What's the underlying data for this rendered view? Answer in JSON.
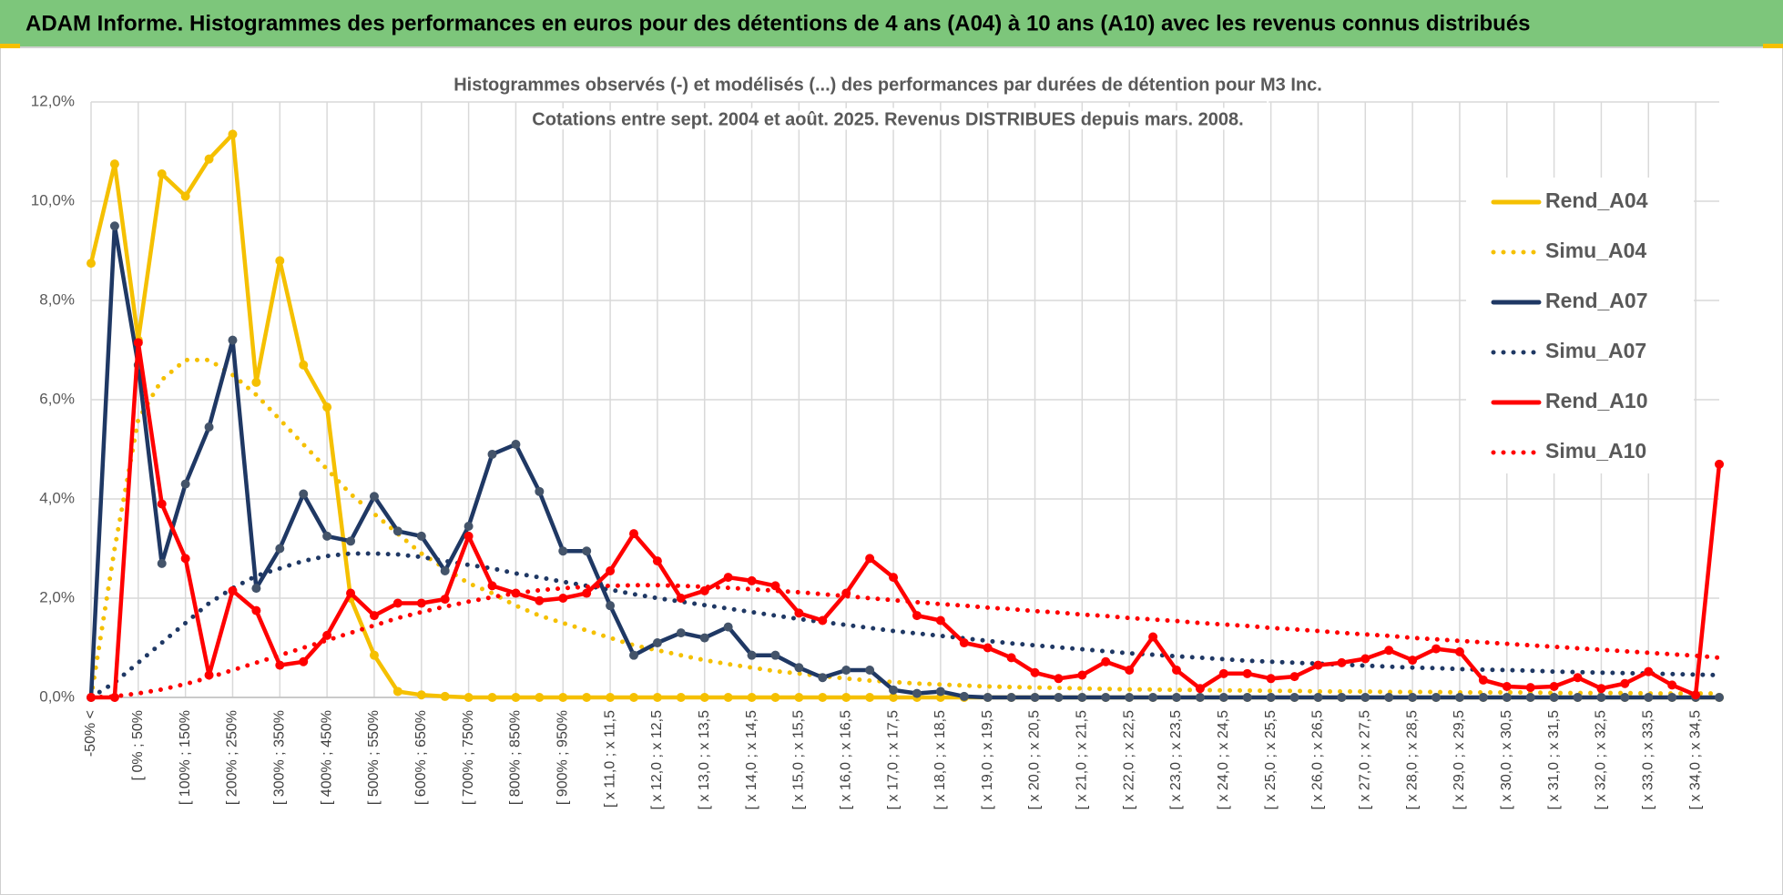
{
  "page_title": "ADAM Informe. Histogrammes des performances en euros pour des détentions de 4 ans (A04) à 10 ans (A10) avec les revenus connus distribués",
  "chart_data": {
    "type": "line",
    "title": "Histogrammes observés (-) et modélisés (...) des performances par durées de détention pour M3 Inc.",
    "subtitle": "Cotations entre sept. 2004 et août. 2025. Revenus DISTRIBUES depuis mars. 2008.",
    "categories": [
      "-50% <",
      null,
      "[ 0% ; 50%",
      null,
      "[ 100% ; 150%",
      null,
      "[ 200% ; 250%",
      null,
      "[ 300% ; 350%",
      null,
      "[ 400% ; 450%",
      null,
      "[ 500% ; 550%",
      null,
      "[ 600% ; 650%",
      null,
      "[ 700% ; 750%",
      null,
      "[ 800% ; 850%",
      null,
      "[ 900% ; 950%",
      null,
      "[ x 11,0 ; x 11,5",
      null,
      "[ x 12,0 ; x 12,5",
      null,
      "[ x 13,0 ; x 13,5",
      null,
      "[ x 14,0 ; x 14,5",
      null,
      "[ x 15,0 ; x 15,5",
      null,
      "[ x 16,0 ; x 16,5",
      null,
      "[ x 17,0 ; x 17,5",
      null,
      "[ x 18,0 ; x 18,5",
      null,
      "[ x 19,0 ; x 19,5",
      null,
      "[ x 20,0 ; x 20,5",
      null,
      "[ x 21,0 ; x 21,5",
      null,
      "[ x 22,0 ; x 22,5",
      null,
      "[ x 23,0 ; x 23,5",
      null,
      "[ x 24,0 ; x 24,5",
      null,
      "[ x 25,0 ; x 25,5",
      null,
      "[ x 26,0 ; x 26,5",
      null,
      "[ x 27,0 ; x 27,5",
      null,
      "[ x 28,0 ; x 28,5",
      null,
      "[ x 29,0 ; x 29,5",
      null,
      "[ x 30,0 ; x 30,5",
      null,
      "[ x 31,0 ; x 31,5",
      null,
      "[ x 32,0 ; x 32,5",
      null,
      "[ x 33,0 ; x 33,5",
      null,
      "[ x 34,0 ; x 34,5",
      null
    ],
    "series": [
      {
        "name": "Rend_A04",
        "color": "#f5c000",
        "line_style": "solid",
        "values": [
          8.75,
          10.75,
          7.2,
          10.55,
          10.1,
          10.85,
          11.35,
          6.35,
          8.8,
          6.7,
          5.85,
          2.0,
          0.85,
          0.12,
          0.05,
          0.02,
          0,
          0,
          0,
          0,
          0,
          0,
          0,
          0,
          0,
          0,
          0,
          0,
          0,
          0,
          0,
          0,
          0,
          0,
          0,
          0,
          0,
          0,
          0,
          0,
          0,
          0,
          0,
          0,
          0,
          0,
          0,
          0,
          0,
          0,
          0,
          0,
          0,
          0,
          0,
          0,
          0,
          0,
          0,
          0,
          0,
          0,
          0,
          0,
          0,
          0,
          0,
          0,
          0,
          0
        ]
      },
      {
        "name": "Simu_A04",
        "color": "#f5c000",
        "line_style": "dotted",
        "values": [
          0,
          3.0,
          5.6,
          6.4,
          6.8,
          6.8,
          6.5,
          6.1,
          5.6,
          5.1,
          4.6,
          4.1,
          3.7,
          3.3,
          2.9,
          2.6,
          2.3,
          2.1,
          1.85,
          1.65,
          1.5,
          1.35,
          1.2,
          1.05,
          0.95,
          0.85,
          0.75,
          0.67,
          0.6,
          0.53,
          0.48,
          0.43,
          0.38,
          0.34,
          0.31,
          0.28,
          0.26,
          0.24,
          0.22,
          0.21,
          0.2,
          0.19,
          0.18,
          0.17,
          0.16,
          0.16,
          0.15,
          0.15,
          0.14,
          0.14,
          0.13,
          0.13,
          0.12,
          0.12,
          0.12,
          0.11,
          0.11,
          0.11,
          0.1,
          0.1,
          0.1,
          0.1,
          0.09,
          0.09,
          0.09,
          0.09,
          0.08,
          0.08,
          0.08,
          0.08
        ]
      },
      {
        "name": "Rend_A07",
        "color": "#1f3864",
        "line_style": "solid",
        "values": [
          0,
          9.5,
          6.7,
          2.7,
          4.3,
          5.45,
          7.2,
          2.2,
          3.0,
          4.1,
          3.25,
          3.15,
          4.05,
          3.35,
          3.25,
          2.55,
          3.45,
          4.9,
          5.1,
          4.15,
          2.95,
          2.95,
          1.85,
          0.85,
          1.1,
          1.3,
          1.2,
          1.42,
          0.85,
          0.85,
          0.6,
          0.4,
          0.55,
          0.55,
          0.15,
          0.08,
          0.12,
          0.02,
          0,
          0,
          0,
          0,
          0,
          0,
          0,
          0,
          0,
          0,
          0,
          0,
          0,
          0,
          0,
          0,
          0,
          0,
          0,
          0,
          0,
          0,
          0,
          0,
          0,
          0,
          0,
          0,
          0,
          0,
          0,
          0
        ]
      },
      {
        "name": "Simu_A07",
        "color": "#1f3864",
        "line_style": "dotted",
        "values": [
          0,
          0.3,
          0.7,
          1.1,
          1.5,
          1.9,
          2.2,
          2.45,
          2.6,
          2.75,
          2.85,
          2.9,
          2.9,
          2.88,
          2.83,
          2.75,
          2.67,
          2.6,
          2.5,
          2.42,
          2.33,
          2.25,
          2.17,
          2.08,
          2.0,
          1.93,
          1.86,
          1.79,
          1.72,
          1.65,
          1.58,
          1.52,
          1.46,
          1.4,
          1.34,
          1.29,
          1.24,
          1.19,
          1.14,
          1.09,
          1.05,
          1.01,
          0.97,
          0.93,
          0.89,
          0.86,
          0.83,
          0.8,
          0.77,
          0.74,
          0.72,
          0.7,
          0.68,
          0.66,
          0.64,
          0.62,
          0.6,
          0.59,
          0.57,
          0.56,
          0.55,
          0.54,
          0.52,
          0.51,
          0.5,
          0.49,
          0.48,
          0.47,
          0.46,
          0.45
        ]
      },
      {
        "name": "Rend_A10",
        "color": "#ff0000",
        "line_style": "solid",
        "values": [
          0,
          0,
          7.15,
          3.9,
          2.8,
          0.45,
          2.15,
          1.75,
          0.65,
          0.72,
          1.25,
          2.1,
          1.65,
          1.9,
          1.9,
          1.98,
          3.25,
          2.25,
          2.1,
          1.95,
          2.0,
          2.1,
          2.55,
          3.3,
          2.75,
          2.0,
          2.15,
          2.42,
          2.35,
          2.25,
          1.7,
          1.55,
          2.1,
          2.8,
          2.42,
          1.65,
          1.55,
          1.1,
          1.0,
          0.8,
          0.5,
          0.38,
          0.45,
          0.72,
          0.55,
          1.22,
          0.55,
          0.18,
          0.48,
          0.48,
          0.38,
          0.42,
          0.65,
          0.7,
          0.78,
          0.95,
          0.75,
          0.98,
          0.92,
          0.35,
          0.22,
          0.2,
          0.22,
          0.4,
          0.18,
          0.28,
          0.52,
          0.25,
          0.05,
          4.7
        ]
      },
      {
        "name": "Simu_A10",
        "color": "#ff0000",
        "line_style": "dotted",
        "values": [
          0,
          0.02,
          0.08,
          0.16,
          0.27,
          0.4,
          0.55,
          0.7,
          0.85,
          1.0,
          1.15,
          1.3,
          1.45,
          1.6,
          1.72,
          1.83,
          1.93,
          2.02,
          2.1,
          2.16,
          2.2,
          2.23,
          2.25,
          2.26,
          2.26,
          2.25,
          2.23,
          2.21,
          2.18,
          2.15,
          2.12,
          2.08,
          2.04,
          2.0,
          1.96,
          1.92,
          1.88,
          1.85,
          1.81,
          1.78,
          1.74,
          1.71,
          1.67,
          1.64,
          1.6,
          1.57,
          1.54,
          1.5,
          1.47,
          1.44,
          1.4,
          1.37,
          1.34,
          1.3,
          1.27,
          1.24,
          1.2,
          1.17,
          1.14,
          1.11,
          1.08,
          1.05,
          1.02,
          0.99,
          0.96,
          0.93,
          0.9,
          0.87,
          0.84,
          0.8
        ]
      }
    ],
    "ylim": [
      0,
      12
    ],
    "yticks": [
      {
        "value": 0,
        "label": "0,0%"
      },
      {
        "value": 2,
        "label": "2,0%"
      },
      {
        "value": 4,
        "label": "4,0%"
      },
      {
        "value": 6,
        "label": "6,0%"
      },
      {
        "value": 8,
        "label": "8,0%"
      },
      {
        "value": 10,
        "label": "10,0%"
      },
      {
        "value": 12,
        "label": "12,0%"
      }
    ],
    "grid": true,
    "legend": "right"
  }
}
